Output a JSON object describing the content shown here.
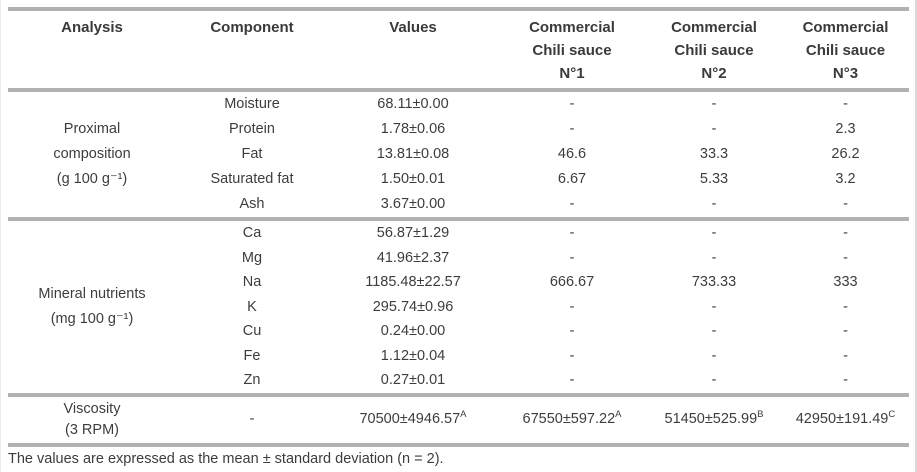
{
  "table": {
    "columns": [
      {
        "lines": [
          "Analysis"
        ]
      },
      {
        "lines": [
          "Component"
        ]
      },
      {
        "lines": [
          "Values"
        ]
      },
      {
        "lines": [
          "Commercial",
          "Chili sauce",
          "N°1"
        ]
      },
      {
        "lines": [
          "Commercial",
          "Chili sauce",
          "N°2"
        ]
      },
      {
        "lines": [
          "Commercial",
          "Chili sauce",
          "N°3"
        ]
      }
    ],
    "sections": [
      {
        "analysis_lines": [
          "Proximal",
          "composition",
          "(g 100 g⁻¹)"
        ],
        "rows": [
          {
            "component": "Moisture",
            "values": "68.11±0.00",
            "n1": "-",
            "n2": "-",
            "n3": "-"
          },
          {
            "component": "Protein",
            "values": "1.78±0.06",
            "n1": "-",
            "n2": "-",
            "n3": "2.3"
          },
          {
            "component": "Fat",
            "values": "13.81±0.08",
            "n1": "46.6",
            "n2": "33.3",
            "n3": "26.2"
          },
          {
            "component": "Saturated fat",
            "values": "1.50±0.01",
            "n1": "6.67",
            "n2": "5.33",
            "n3": "3.2"
          },
          {
            "component": "Ash",
            "values": "3.67±0.00",
            "n1": "-",
            "n2": "-",
            "n3": "-"
          }
        ]
      },
      {
        "analysis_lines": [
          "Mineral nutrients",
          "(mg 100 g⁻¹)"
        ],
        "rows": [
          {
            "component": "Ca",
            "values": "56.87±1.29",
            "n1": "-",
            "n2": "-",
            "n3": "-"
          },
          {
            "component": "Mg",
            "values": "41.96±2.37",
            "n1": "-",
            "n2": "-",
            "n3": "-"
          },
          {
            "component": "Na",
            "values": "1185.48±22.57",
            "n1": "666.67",
            "n2": "733.33",
            "n3": "333"
          },
          {
            "component": "K",
            "values": "295.74±0.96",
            "n1": "-",
            "n2": "-",
            "n3": "-"
          },
          {
            "component": "Cu",
            "values": "0.24±0.00",
            "n1": "-",
            "n2": "-",
            "n3": "-"
          },
          {
            "component": "Fe",
            "values": "1.12±0.04",
            "n1": "-",
            "n2": "-",
            "n3": "-"
          },
          {
            "component": "Zn",
            "values": "0.27±0.01",
            "n1": "-",
            "n2": "-",
            "n3": "-"
          }
        ]
      }
    ],
    "viscosity": {
      "analysis_lines": [
        "Viscosity",
        "(3 RPM)"
      ],
      "component": "-",
      "values": {
        "v": "70500±4946.57",
        "sup": "A"
      },
      "n1": {
        "v": "67550±597.22",
        "sup": "A"
      },
      "n2": {
        "v": "51450±525.99",
        "sup": "B"
      },
      "n3": {
        "v": "42950±191.49",
        "sup": "C"
      }
    },
    "footnote": "The values are expressed as the mean ± standard deviation (n = 2)."
  }
}
